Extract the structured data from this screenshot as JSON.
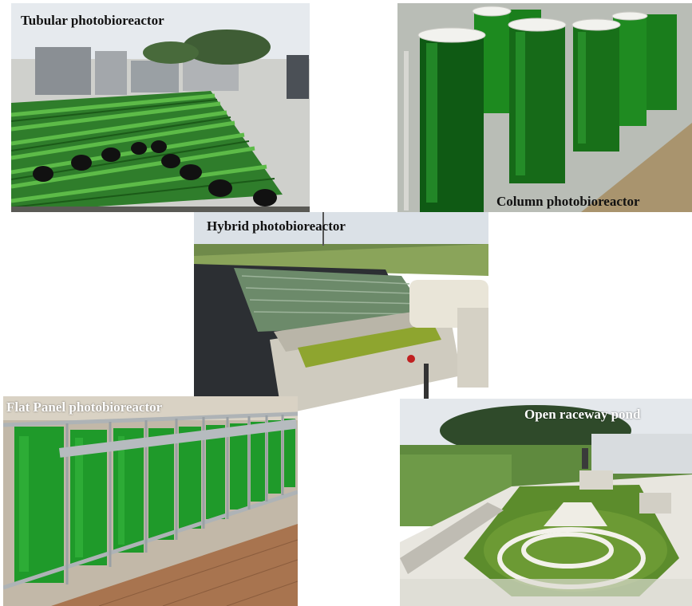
{
  "figure": {
    "panels": [
      {
        "id": "tubular",
        "caption": "Tubular photobioreactor"
      },
      {
        "id": "column",
        "caption": "Column photobioreactor"
      },
      {
        "id": "hybrid",
        "caption": "Hybrid photobioreactor"
      },
      {
        "id": "flat",
        "caption": "Flat Panel photobioreactor"
      },
      {
        "id": "raceway",
        "caption": "Open raceway pond"
      }
    ]
  },
  "colors": {
    "algae_green": "#1f8a2a",
    "algae_dark": "#0f5a14",
    "sky": "#dfe6ec",
    "concrete": "#c9c9c4"
  }
}
